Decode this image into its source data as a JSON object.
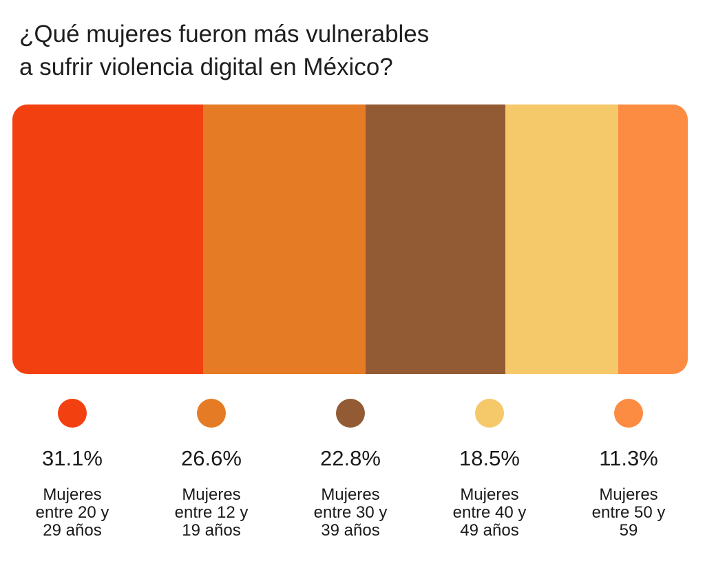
{
  "title": {
    "line1": "¿Qué mujeres fueron más vulnerables",
    "line2": "a sufrir violencia digital en México?"
  },
  "chart_data": {
    "type": "bar",
    "subtype": "stacked-100-horizontal",
    "title": "¿Qué mujeres fueron más vulnerables a sufrir violencia digital en México?",
    "unit": "%",
    "categories": [
      "Mujeres entre 20 y 29 años",
      "Mujeres entre 12 y 19 años",
      "Mujeres entre 30 y 39 años",
      "Mujeres entre 40 y 49 años",
      "Mujeres entre 50 y 59"
    ],
    "values": [
      31.1,
      26.6,
      22.8,
      18.5,
      11.3
    ],
    "value_labels": [
      "31.1%",
      "26.6%",
      "22.8%",
      "18.5%",
      "11.3%"
    ],
    "colors": [
      "#f34011",
      "#e57b24",
      "#935b33",
      "#f5c96a",
      "#fd8c43"
    ],
    "legend": [
      {
        "value": "31.1%",
        "lines": [
          "Mujeres",
          "entre 20 y",
          "29 años"
        ]
      },
      {
        "value": "26.6%",
        "lines": [
          "Mujeres",
          "entre 12 y",
          "19 años"
        ]
      },
      {
        "value": "22.8%",
        "lines": [
          "Mujeres",
          "entre 30 y",
          "39 años"
        ]
      },
      {
        "value": "18.5%",
        "lines": [
          "Mujeres",
          "entre 40 y",
          "49 años"
        ]
      },
      {
        "value": "11.3%",
        "lines": [
          "Mujeres",
          "entre 50 y",
          "59"
        ]
      }
    ]
  }
}
